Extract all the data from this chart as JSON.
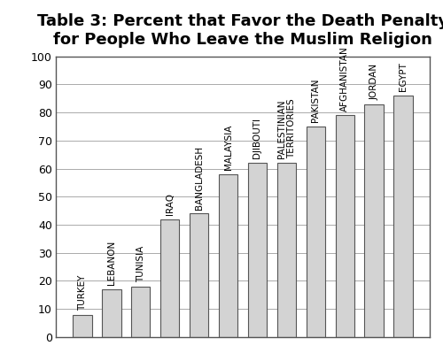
{
  "title": "Table 3: Percent that Favor the Death Penalty\nfor People Who Leave the Muslim Religion",
  "categories": [
    "TURKEY",
    "LEBANON",
    "TUNISIA",
    "IRAQ",
    "BANGLADESH",
    "MALAYSIA",
    "DJIBOUTI",
    "PALESTINIAN\nTERRITORIES",
    "PAKISTAN",
    "AFGHANISTAN",
    "JORDAN",
    "EGYPT"
  ],
  "values": [
    8,
    17,
    18,
    42,
    44,
    58,
    62,
    62,
    75,
    79,
    83,
    86
  ],
  "bar_color": "#d3d3d3",
  "bar_edge_color": "#555555",
  "ylim": [
    0,
    100
  ],
  "yticks": [
    0,
    10,
    20,
    30,
    40,
    50,
    60,
    70,
    80,
    90,
    100
  ],
  "background_color": "#ffffff",
  "title_fontsize": 13,
  "tick_fontsize": 9,
  "label_fontsize": 7.5
}
